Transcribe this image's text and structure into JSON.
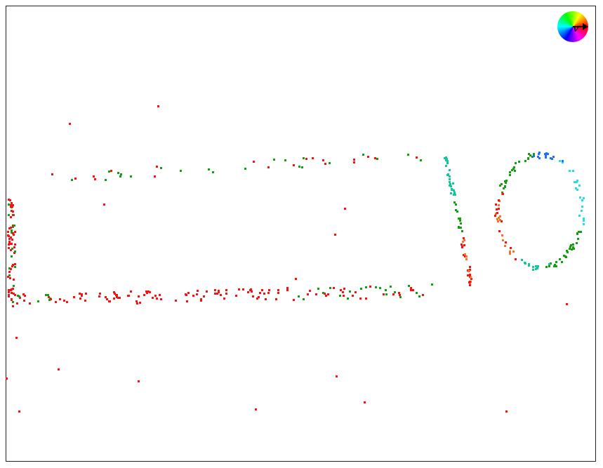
{
  "legend": {
    "wheel_icon": "hue-direction-color-wheel",
    "vector_symbol": "v"
  },
  "colors": {
    "background": "#ffffff",
    "frame": "#222222",
    "red": "#ff1010",
    "green": "#10a010",
    "teal": "#10c8a0",
    "cyan": "#20e0e0",
    "blue": "#2070ff",
    "orange": "#ff7020"
  }
}
